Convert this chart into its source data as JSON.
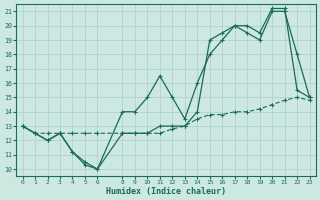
{
  "xlabel": "Humidex (Indice chaleur)",
  "background_color": "#cce8e0",
  "grid_color": "#aacfc8",
  "line_color": "#1a6b5a",
  "xlim": [
    -0.5,
    23.5
  ],
  "ylim": [
    9.5,
    21.5
  ],
  "xticks": [
    0,
    1,
    2,
    3,
    4,
    5,
    6,
    8,
    9,
    10,
    11,
    12,
    13,
    14,
    15,
    16,
    17,
    18,
    19,
    20,
    21,
    22,
    23
  ],
  "yticks": [
    10,
    11,
    12,
    13,
    14,
    15,
    16,
    17,
    18,
    19,
    20,
    21
  ],
  "line1_x": [
    0,
    1,
    2,
    3,
    4,
    5,
    6,
    8,
    9,
    10,
    11,
    12,
    13,
    14,
    15,
    16,
    17,
    18,
    19,
    20,
    21,
    22,
    23
  ],
  "line1_y": [
    13,
    12.5,
    12,
    12.5,
    11.2,
    10.3,
    10,
    14,
    14,
    15,
    16.5,
    15,
    13.5,
    16,
    18,
    19,
    20,
    19.5,
    19,
    21,
    21,
    18,
    15
  ],
  "line2_x": [
    0,
    1,
    2,
    3,
    4,
    5,
    6,
    8,
    9,
    10,
    11,
    12,
    13,
    14,
    15,
    16,
    17,
    18,
    19,
    20,
    21,
    22,
    23
  ],
  "line2_y": [
    13,
    12.5,
    12,
    12.5,
    11.2,
    10.5,
    10,
    12.5,
    12.5,
    12.5,
    13,
    13,
    13,
    14,
    19,
    19.5,
    20,
    20,
    19.5,
    21.2,
    21.2,
    15.5,
    15
  ],
  "line3_x": [
    0,
    1,
    2,
    3,
    4,
    5,
    6,
    8,
    9,
    10,
    11,
    12,
    13,
    14,
    15,
    16,
    17,
    18,
    19,
    20,
    21,
    22,
    23
  ],
  "line3_y": [
    13,
    12.5,
    12.5,
    12.5,
    12.5,
    12.5,
    12.5,
    12.5,
    12.5,
    12.5,
    12.5,
    12.8,
    13,
    13.5,
    13.8,
    13.8,
    14,
    14,
    14.2,
    14.5,
    14.8,
    15,
    14.8
  ]
}
